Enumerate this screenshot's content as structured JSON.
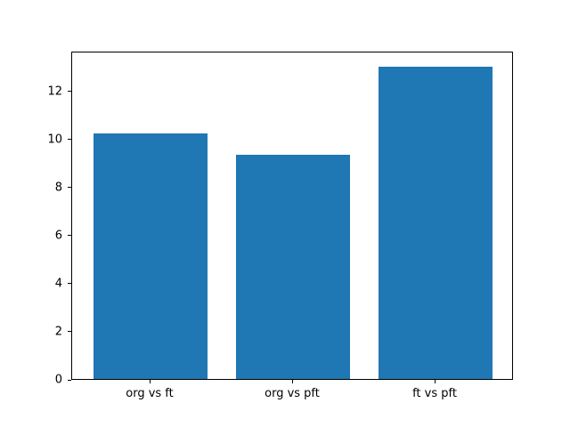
{
  "chart_data": {
    "type": "bar",
    "categories": [
      "org vs ft",
      "org vs pft",
      "ft vs pft"
    ],
    "values": [
      10.2,
      9.33,
      13.0
    ],
    "title": "",
    "xlabel": "",
    "ylabel": "",
    "ylim": [
      0,
      13.65
    ],
    "xlim": [
      -0.55,
      2.55
    ],
    "yticks": [
      0,
      2,
      4,
      6,
      8,
      10,
      12
    ],
    "bar_width": 0.8,
    "grid": false,
    "legend_position": "none",
    "bar_color": "#1f77b4",
    "axes_color": "#000000",
    "background_color": "#ffffff"
  }
}
